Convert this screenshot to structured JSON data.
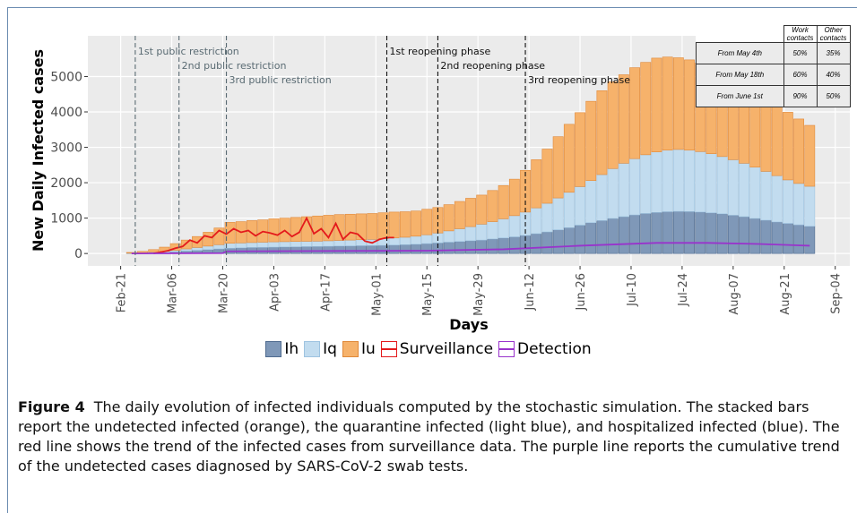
{
  "chart_data": {
    "type": "bar",
    "stacked": true,
    "ylabel": "New Daily Infected cases",
    "xlabel": "Days",
    "ylim": [
      -350,
      6150
    ],
    "yticks": [
      0,
      1000,
      2000,
      3000,
      4000,
      5000
    ],
    "xlim": [
      "Feb-12",
      "Sep-08"
    ],
    "xticks": [
      "Feb-21",
      "Mar-06",
      "Mar-20",
      "Apr-03",
      "Apr-17",
      "May-01",
      "May-15",
      "May-29",
      "Jun-12",
      "Jun-26",
      "Jul-10",
      "Jul-24",
      "Aug-07",
      "Aug-21",
      "Sep-04"
    ],
    "grid": true,
    "x": [
      "Feb-24",
      "Feb-27",
      "Mar-01",
      "Mar-04",
      "Mar-07",
      "Mar-10",
      "Mar-13",
      "Mar-16",
      "Mar-19",
      "Mar-22",
      "Mar-25",
      "Mar-28",
      "Mar-31",
      "Apr-03",
      "Apr-06",
      "Apr-09",
      "Apr-12",
      "Apr-15",
      "Apr-18",
      "Apr-21",
      "Apr-24",
      "Apr-27",
      "Apr-30",
      "May-03",
      "May-06",
      "May-09",
      "May-12",
      "May-15",
      "May-18",
      "May-21",
      "May-24",
      "May-27",
      "May-30",
      "Jun-02",
      "Jun-05",
      "Jun-08",
      "Jun-11",
      "Jun-14",
      "Jun-17",
      "Jun-20",
      "Jun-23",
      "Jun-26",
      "Jun-29",
      "Jul-02",
      "Jul-05",
      "Jul-08",
      "Jul-11",
      "Jul-14",
      "Jul-17",
      "Jul-20",
      "Jul-23",
      "Jul-26",
      "Jul-29",
      "Aug-01",
      "Aug-04",
      "Aug-07",
      "Aug-10",
      "Aug-13",
      "Aug-16",
      "Aug-19",
      "Aug-22",
      "Aug-25",
      "Aug-28"
    ],
    "series": [
      {
        "name": "Ih",
        "type": "bar",
        "color": "#7f98b8",
        "edge": "#4f6b8f",
        "values": [
          5,
          10,
          20,
          30,
          50,
          70,
          90,
          110,
          130,
          150,
          160,
          170,
          175,
          180,
          185,
          190,
          195,
          200,
          205,
          210,
          215,
          220,
          225,
          230,
          240,
          250,
          260,
          280,
          300,
          320,
          340,
          360,
          380,
          410,
          440,
          470,
          510,
          560,
          610,
          670,
          730,
          800,
          870,
          930,
          990,
          1040,
          1090,
          1130,
          1160,
          1180,
          1190,
          1185,
          1170,
          1150,
          1120,
          1080,
          1040,
          990,
          940,
          890,
          850,
          810,
          770
        ]
      },
      {
        "name": "Iq",
        "type": "bar",
        "color": "#c2dcef",
        "edge": "#9ec3e0",
        "values": [
          5,
          10,
          20,
          30,
          40,
          60,
          80,
          100,
          120,
          140,
          140,
          140,
          145,
          150,
          150,
          150,
          150,
          150,
          155,
          160,
          165,
          170,
          175,
          190,
          200,
          210,
          230,
          250,
          280,
          320,
          360,
          400,
          450,
          490,
          540,
          600,
          660,
          730,
          810,
          900,
          1000,
          1090,
          1190,
          1300,
          1410,
          1510,
          1590,
          1660,
          1710,
          1740,
          1750,
          1735,
          1710,
          1670,
          1620,
          1570,
          1510,
          1450,
          1380,
          1310,
          1230,
          1170,
          1130
        ]
      },
      {
        "name": "Iu",
        "type": "bar",
        "color": "#f6b26b",
        "edge": "#e0893a",
        "values": [
          20,
          40,
          70,
          120,
          190,
          250,
          310,
          390,
          470,
          590,
          600,
          620,
          630,
          650,
          665,
          680,
          695,
          710,
          720,
          730,
          730,
          730,
          730,
          730,
          730,
          720,
          710,
          720,
          720,
          740,
          770,
          800,
          820,
          880,
          940,
          1030,
          1180,
          1360,
          1530,
          1730,
          1920,
          2090,
          2240,
          2370,
          2450,
          2500,
          2570,
          2610,
          2650,
          2630,
          2590,
          2550,
          2500,
          2440,
          2380,
          2300,
          2230,
          2140,
          2060,
          1980,
          1910,
          1820,
          1720
        ]
      },
      {
        "name": "Surveillance",
        "type": "line",
        "color": "#e41a1c",
        "x": [
          "Mar-01",
          "Mar-03",
          "Mar-05",
          "Mar-07",
          "Mar-09",
          "Mar-11",
          "Mar-13",
          "Mar-15",
          "Mar-17",
          "Mar-19",
          "Mar-21",
          "Mar-23",
          "Mar-25",
          "Mar-27",
          "Mar-29",
          "Mar-31",
          "Apr-02",
          "Apr-04",
          "Apr-06",
          "Apr-08",
          "Apr-10",
          "Apr-12",
          "Apr-14",
          "Apr-16",
          "Apr-18",
          "Apr-20",
          "Apr-22",
          "Apr-24",
          "Apr-26",
          "Apr-28",
          "Apr-30",
          "May-02",
          "May-04",
          "May-06"
        ],
        "values": [
          0,
          40,
          80,
          150,
          200,
          380,
          300,
          500,
          450,
          650,
          550,
          700,
          600,
          650,
          500,
          620,
          580,
          520,
          650,
          480,
          600,
          1000,
          560,
          700,
          450,
          850,
          400,
          600,
          550,
          350,
          300,
          400,
          450,
          450
        ]
      },
      {
        "name": "Detection",
        "type": "line",
        "color": "#9933cc",
        "x": [
          "Feb-24",
          "Mar-20",
          "Mar-21",
          "Apr-15",
          "May-15",
          "Jun-05",
          "Jun-26",
          "Jul-17",
          "Jul-31",
          "Aug-14",
          "Aug-28"
        ],
        "values": [
          0,
          10,
          60,
          70,
          80,
          120,
          220,
          300,
          300,
          270,
          220
        ]
      }
    ],
    "vlines": [
      {
        "x": "Feb-25",
        "label": "1st public restriction",
        "color": "#5a6b73"
      },
      {
        "x": "Mar-08",
        "label": "2nd public restriction",
        "color": "#5a6b73"
      },
      {
        "x": "Mar-21",
        "label": "3rd public restriction",
        "color": "#5a6b73"
      },
      {
        "x": "May-04",
        "label": "1st reopening phase",
        "color": "#111111"
      },
      {
        "x": "May-18",
        "label": "2nd reopening phase",
        "color": "#111111"
      },
      {
        "x": "Jun-11",
        "label": "3rd reopening phase",
        "color": "#111111"
      }
    ]
  },
  "table": {
    "header": [
      "Work contacts",
      "Other contacts"
    ],
    "rows": [
      [
        "From May 4th",
        "50%",
        "35%"
      ],
      [
        "From May 18th",
        "60%",
        "40%"
      ],
      [
        "From June 1st",
        "90%",
        "50%"
      ]
    ]
  },
  "figure": {
    "label": "Figure 4",
    "caption": "The daily evolution of infected individuals computed by the stochastic simulation. The stacked bars report the undetected infected (orange), the quarantine infected (light blue), and hospitalized infected (blue). The red line shows the trend of the infected cases from surveillance data. The purple line reports the cumulative trend of the undetected cases diagnosed by SARS-CoV-2 swab tests."
  }
}
